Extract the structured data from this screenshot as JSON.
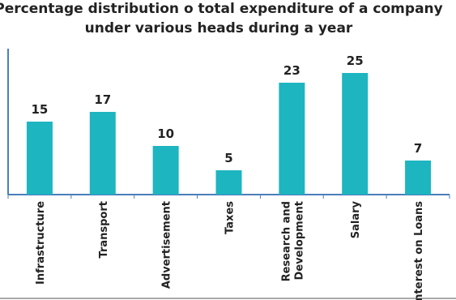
{
  "chart_data": {
    "type": "bar",
    "title": "Percentage distribution o total expenditure of a company",
    "subtitle": "under various heads during a year",
    "xlabel": "",
    "ylabel": "",
    "ylim": [
      0,
      25
    ],
    "grid": false,
    "legend": "none",
    "bar_color": "#1db5c0",
    "axis_color": "#4a7ebb",
    "categories": [
      [
        "Infrastructure"
      ],
      [
        "Transport"
      ],
      [
        "Advertisement"
      ],
      [
        "Taxes"
      ],
      [
        "Research and",
        "Development"
      ],
      [
        "Salary"
      ],
      [
        "Interest on Loans"
      ]
    ],
    "values": [
      15,
      17,
      10,
      5,
      23,
      25,
      7
    ]
  }
}
